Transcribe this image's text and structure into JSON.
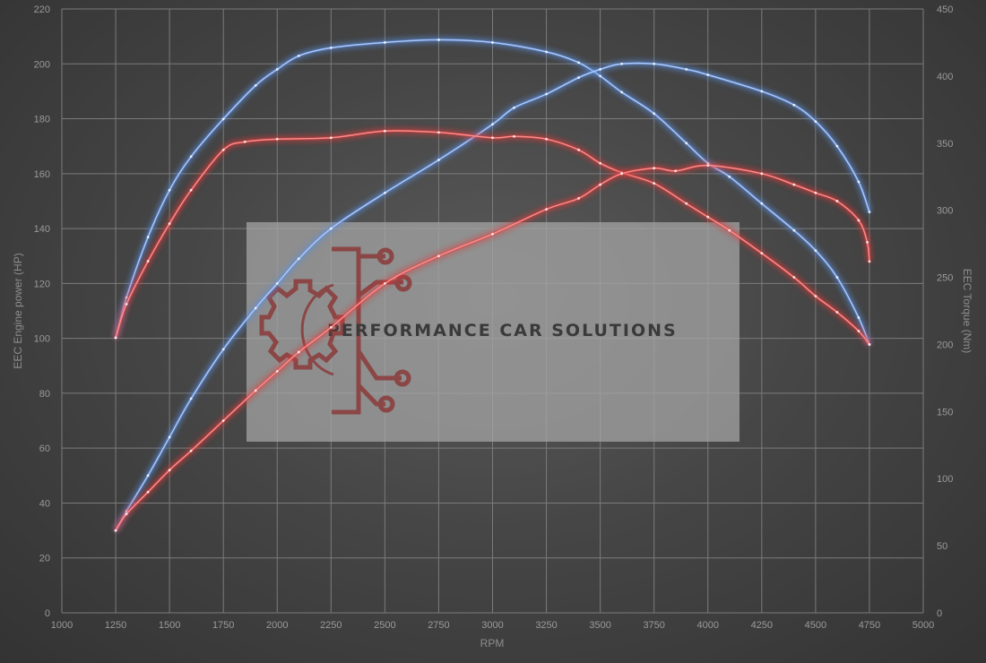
{
  "chart_data": {
    "type": "line",
    "xlabel": "RPM",
    "ylabel_left": "EEC Engine power (HP)",
    "ylabel_right": "EEC Torque (Nm)",
    "xlim": [
      1000,
      5000
    ],
    "ylim_left": [
      0,
      220
    ],
    "ylim_right": [
      0,
      450
    ],
    "x_ticks": [
      1000,
      1250,
      1500,
      1750,
      2000,
      2250,
      2500,
      2750,
      3000,
      3250,
      3500,
      3750,
      4000,
      4250,
      4500,
      4750,
      5000
    ],
    "y_left_ticks": [
      0,
      20,
      40,
      60,
      80,
      100,
      120,
      140,
      160,
      180,
      200,
      220
    ],
    "y_right_ticks": [
      0,
      50,
      100,
      150,
      200,
      250,
      300,
      350,
      400,
      450
    ],
    "grid": true,
    "series": [
      {
        "id": "tuned-torque",
        "axis": "right",
        "color": "#5b8fe0",
        "x": [
          1250,
          1300,
          1400,
          1500,
          1600,
          1750,
          1900,
          2000,
          2100,
          2250,
          2500,
          2750,
          3000,
          3250,
          3400,
          3500,
          3600,
          3750,
          3900,
          4000,
          4100,
          4250,
          4400,
          4500,
          4600,
          4700,
          4750
        ],
        "y": [
          205,
          235,
          280,
          315,
          340,
          368,
          393,
          405,
          415,
          421,
          425,
          427,
          425,
          418,
          410,
          400,
          388,
          372,
          350,
          335,
          325,
          305,
          285,
          270,
          250,
          220,
          200
        ]
      },
      {
        "id": "tuned-power",
        "axis": "left",
        "color": "#5b8fe0",
        "x": [
          1250,
          1300,
          1400,
          1500,
          1600,
          1750,
          1900,
          2000,
          2100,
          2250,
          2500,
          2750,
          3000,
          3100,
          3250,
          3400,
          3500,
          3600,
          3750,
          3900,
          4000,
          4250,
          4400,
          4500,
          4600,
          4700,
          4750
        ],
        "y": [
          30,
          37,
          50,
          64,
          78,
          96,
          111,
          120,
          129,
          140,
          153,
          165,
          178,
          184,
          189,
          195,
          198,
          200,
          200,
          198,
          196,
          190,
          185,
          179,
          170,
          157,
          146
        ]
      },
      {
        "id": "stock-torque",
        "axis": "right",
        "color": "#e23a3a",
        "x": [
          1250,
          1300,
          1400,
          1500,
          1600,
          1750,
          1850,
          2000,
          2250,
          2500,
          2750,
          3000,
          3100,
          3250,
          3400,
          3500,
          3600,
          3750,
          3900,
          4000,
          4100,
          4250,
          4400,
          4500,
          4600,
          4700,
          4750
        ],
        "y": [
          205,
          230,
          262,
          290,
          315,
          345,
          351,
          353,
          354,
          359,
          358,
          354,
          355,
          353,
          345,
          335,
          328,
          320,
          305,
          295,
          285,
          268,
          250,
          236,
          224,
          210,
          200
        ]
      },
      {
        "id": "stock-power",
        "axis": "left",
        "color": "#e23a3a",
        "x": [
          1250,
          1300,
          1400,
          1500,
          1600,
          1750,
          1900,
          2000,
          2100,
          2250,
          2500,
          2750,
          3000,
          3250,
          3400,
          3500,
          3600,
          3750,
          3850,
          4000,
          4250,
          4400,
          4500,
          4600,
          4700,
          4740,
          4750
        ],
        "y": [
          30,
          36,
          44,
          52,
          59,
          70,
          81,
          88,
          95,
          104,
          120,
          130,
          138,
          147,
          151,
          156,
          160,
          162,
          161,
          163,
          160,
          156,
          153,
          150,
          143,
          135,
          128
        ]
      }
    ]
  },
  "watermark": {
    "text": "PERFORMANCE CAR SOLUTIONS",
    "logo_icon": "gear-circuit-icon",
    "logo_color": "#8b3a3a"
  }
}
